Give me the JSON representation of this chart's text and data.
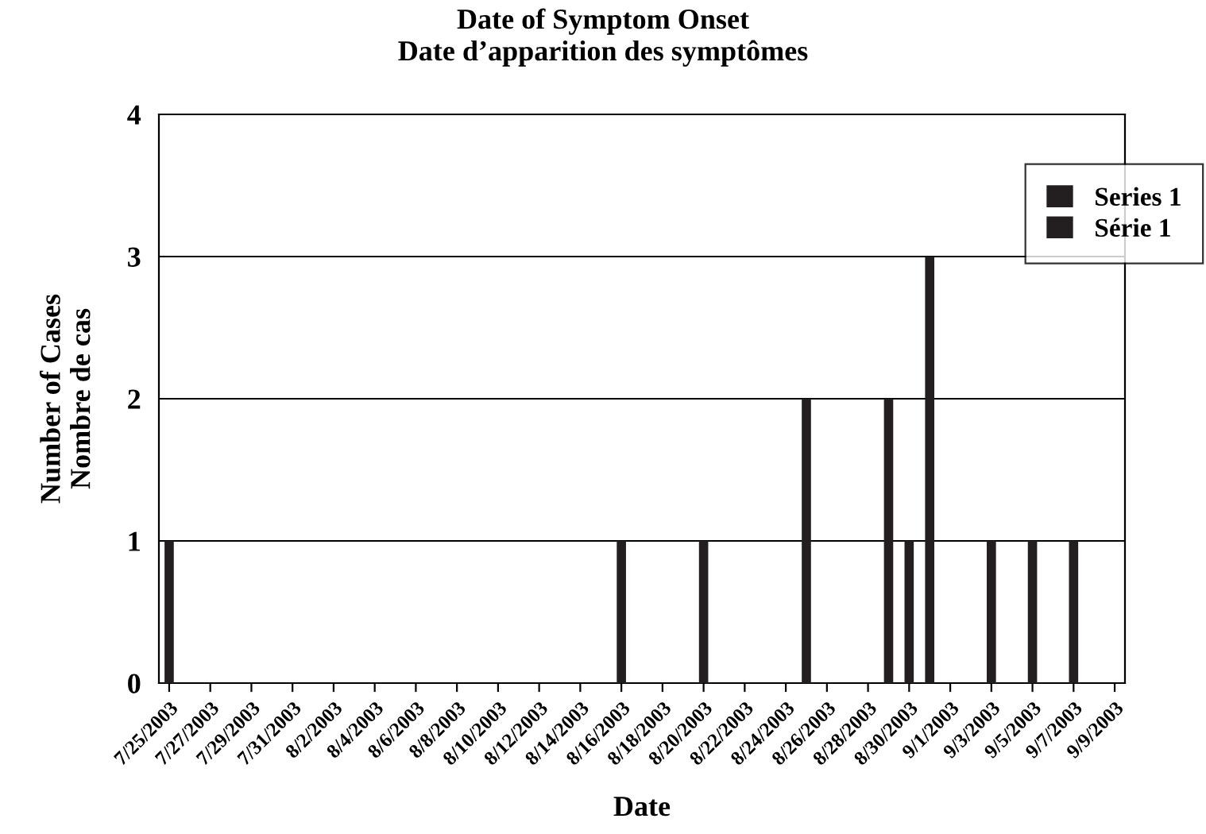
{
  "chart_data": {
    "type": "bar",
    "title": "Date of Symptom Onset",
    "subtitle": "Date d’apparition des symptômes",
    "xlabel": "Date",
    "ylabel": "Number of Cases\nNombre de cas",
    "x": [
      "2003-07-25",
      "2003-08-16",
      "2003-08-20",
      "2003-08-25",
      "2003-08-29",
      "2003-08-30",
      "2003-08-31",
      "2003-09-03",
      "2003-09-05",
      "2003-09-07"
    ],
    "series": [
      {
        "name": "Series 1\nSérie 1",
        "color": "#231f20",
        "values": [
          1,
          1,
          1,
          2,
          2,
          1,
          3,
          1,
          1,
          1
        ]
      }
    ],
    "xlim": [
      "2003-07-24T12:00",
      "2003-09-09T12:00"
    ],
    "xticks": [
      {
        "value": "2003-07-25",
        "label": "7/25/2003"
      },
      {
        "value": "2003-07-27",
        "label": "7/27/2003"
      },
      {
        "value": "2003-07-29",
        "label": "7/29/2003"
      },
      {
        "value": "2003-07-31",
        "label": "7/31/2003"
      },
      {
        "value": "2003-08-02",
        "label": "8/2/2003"
      },
      {
        "value": "2003-08-04",
        "label": "8/4/2003"
      },
      {
        "value": "2003-08-06",
        "label": "8/6/2003"
      },
      {
        "value": "2003-08-08",
        "label": "8/8/2003"
      },
      {
        "value": "2003-08-10",
        "label": "8/10/2003"
      },
      {
        "value": "2003-08-12",
        "label": "8/12/2003"
      },
      {
        "value": "2003-08-14",
        "label": "8/14/2003"
      },
      {
        "value": "2003-08-16",
        "label": "8/16/2003"
      },
      {
        "value": "2003-08-18",
        "label": "8/18/2003"
      },
      {
        "value": "2003-08-20",
        "label": "8/20/2003"
      },
      {
        "value": "2003-08-22",
        "label": "8/22/2003"
      },
      {
        "value": "2003-08-24",
        "label": "8/24/2003"
      },
      {
        "value": "2003-08-26",
        "label": "8/26/2003"
      },
      {
        "value": "2003-08-28",
        "label": "8/28/2003"
      },
      {
        "value": "2003-08-30",
        "label": "8/30/2003"
      },
      {
        "value": "2003-09-01",
        "label": "9/1/2003"
      },
      {
        "value": "2003-09-03",
        "label": "9/3/2003"
      },
      {
        "value": "2003-09-05",
        "label": "9/5/2003"
      },
      {
        "value": "2003-09-07",
        "label": "9/7/2003"
      },
      {
        "value": "2003-09-09",
        "label": "9/9/2003"
      }
    ],
    "ylim": [
      0,
      4
    ],
    "yticks": [
      0,
      1,
      2,
      3,
      4
    ],
    "grid": "y",
    "legend": "top right"
  }
}
